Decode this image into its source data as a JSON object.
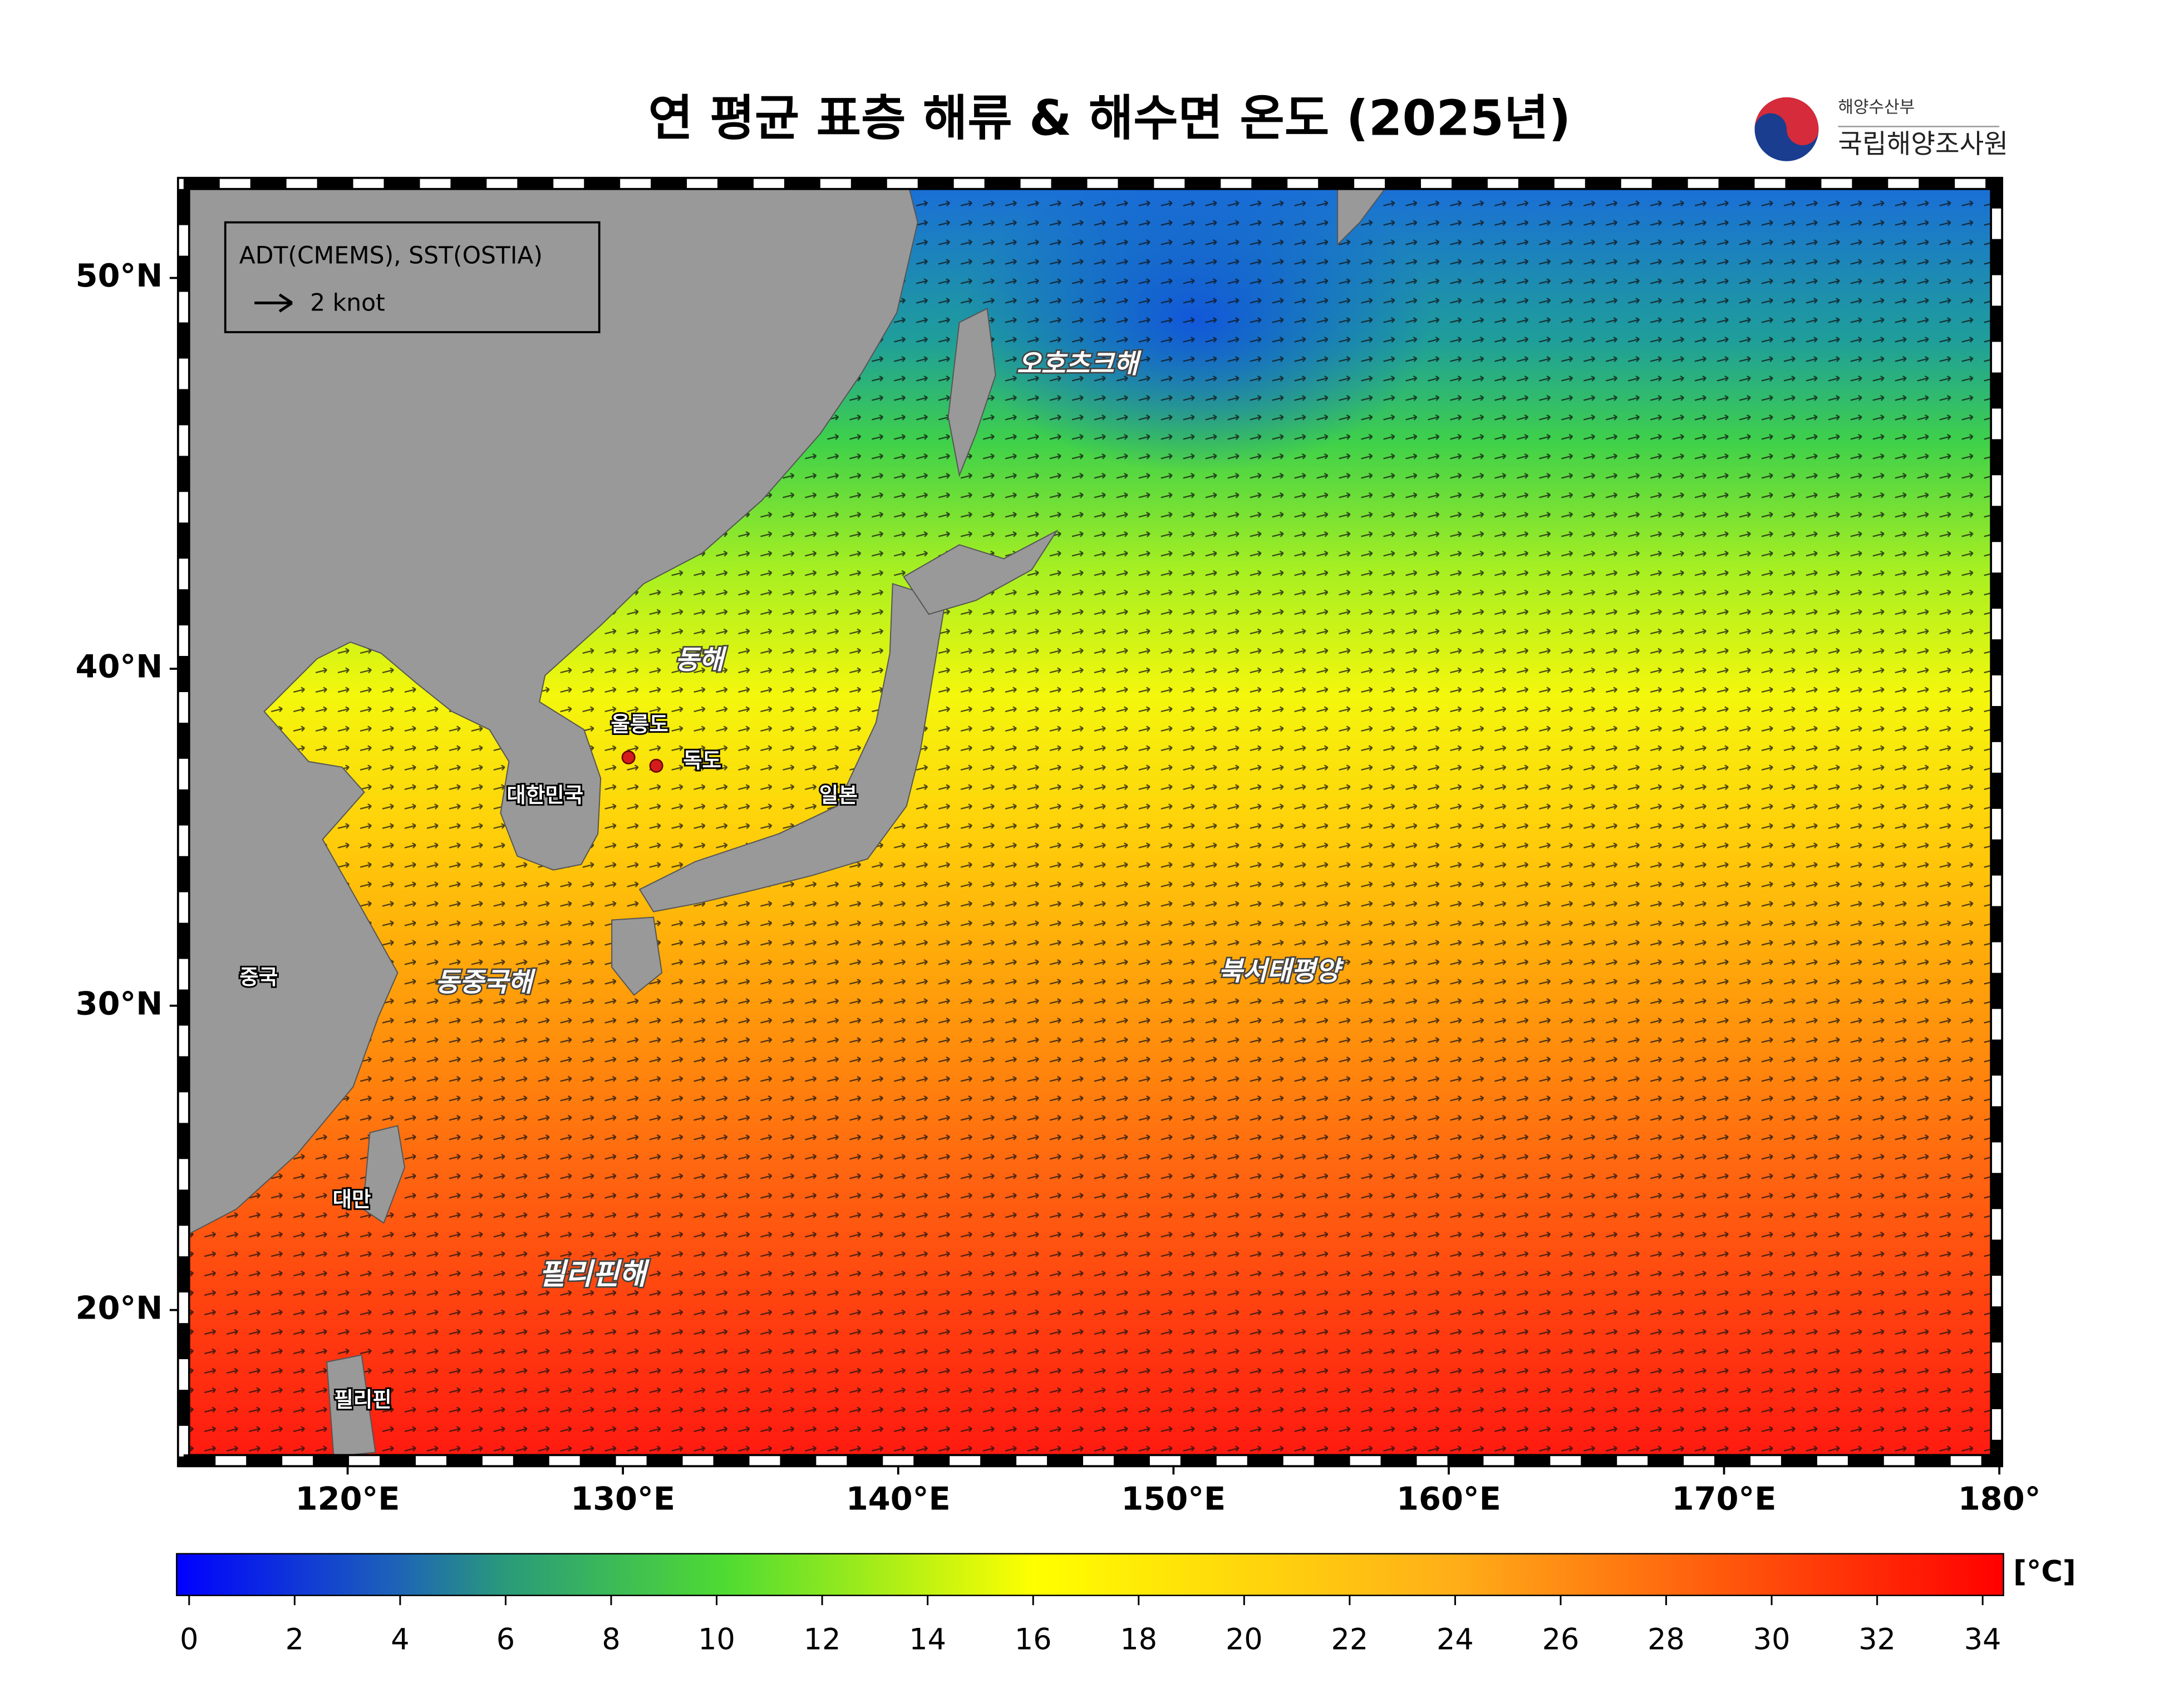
{
  "title": "연 평균 표층 해류 & 해수면 온도 (2025년)",
  "logo": {
    "ministry": "해양수산부",
    "agency": "국립해양조사원"
  },
  "legend": {
    "source": "ADT(CMEMS), SST(OSTIA)",
    "arrow_label": "2 knot"
  },
  "places": {
    "okhotsk": "오호츠크해",
    "east_sea": "동해",
    "ulleungdo": "울릉도",
    "dokdo": "독도",
    "korea": "대한민국",
    "japan": "일본",
    "china": "중국",
    "east_china_sea": "동중국해",
    "nw_pacific": "북서태평양",
    "taiwan": "대만",
    "philippine_sea": "필리핀해",
    "philippines": "필리핀"
  },
  "map": {
    "xticks": [
      {
        "value": 120,
        "label": "120°E"
      },
      {
        "value": 130,
        "label": "130°E"
      },
      {
        "value": 140,
        "label": "140°E"
      },
      {
        "value": 150,
        "label": "150°E"
      },
      {
        "value": 160,
        "label": "160°E"
      },
      {
        "value": 170,
        "label": "170°E"
      },
      {
        "value": 180,
        "label": "180°"
      }
    ],
    "yticks": [
      {
        "value": 20,
        "label": "20°N"
      },
      {
        "value": 30,
        "label": "30°N"
      },
      {
        "value": 40,
        "label": "40°N"
      },
      {
        "value": 50,
        "label": "50°N"
      }
    ]
  },
  "colorbar": {
    "range": [
      0,
      34
    ],
    "ticks": [
      0,
      2,
      4,
      6,
      8,
      10,
      12,
      14,
      16,
      18,
      20,
      22,
      24,
      26,
      28,
      30,
      32,
      34
    ],
    "unit": "[°C]"
  }
}
